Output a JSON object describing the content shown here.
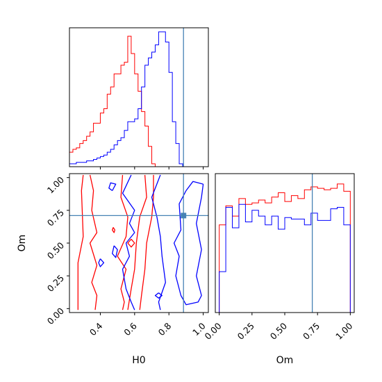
{
  "chart_data": {
    "type": "corner",
    "params": [
      "H0",
      "Om"
    ],
    "truth": {
      "H0": 0.885,
      "Om": 0.71
    },
    "colors": {
      "run_a": "#ff0000",
      "run_b": "#0000ff",
      "truth": "#4682b4"
    },
    "panels": [
      {
        "id": "h0-marginal",
        "type": "step-histogram",
        "xlim": [
          0.22,
          1.03
        ],
        "bin_width": 0.02,
        "series": [
          {
            "color": "red",
            "x_start": 0.22,
            "values": [
              0.1,
              0.12,
              0.13,
              0.16,
              0.18,
              0.21,
              0.24,
              0.3,
              0.3,
              0.37,
              0.4,
              0.5,
              0.55,
              0.64,
              0.64,
              0.7,
              0.72,
              0.9,
              0.78,
              0.64,
              0.52,
              0.38,
              0.28,
              0.14,
              0.02
            ]
          },
          {
            "color": "blue",
            "x_start": 0.22,
            "values": [
              0.02,
              0.02,
              0.03,
              0.03,
              0.03,
              0.04,
              0.04,
              0.05,
              0.06,
              0.07,
              0.08,
              0.1,
              0.12,
              0.15,
              0.18,
              0.2,
              0.25,
              0.31,
              0.31,
              0.33,
              0.4,
              0.55,
              0.7,
              0.75,
              0.79,
              0.84,
              0.93,
              0.93,
              0.86,
              0.65,
              0.31,
              0.16,
              0.02
            ]
          }
        ]
      },
      {
        "id": "om-marginal",
        "type": "step-histogram",
        "xlim": [
          -0.03,
          1.03
        ],
        "series": [
          {
            "color": "red",
            "bins": [
              0,
              0.05,
              0.1,
              0.15,
              0.2,
              0.25,
              0.3,
              0.35,
              0.4,
              0.45,
              0.5,
              0.55,
              0.6,
              0.65,
              0.7,
              0.75,
              0.8,
              0.85,
              0.9,
              0.95,
              1.0
            ],
            "values": [
              0.6,
              0.73,
              0.66,
              0.78,
              0.74,
              0.75,
              0.77,
              0.75,
              0.79,
              0.82,
              0.76,
              0.8,
              0.78,
              0.84,
              0.86,
              0.85,
              0.84,
              0.85,
              0.88,
              0.83
            ]
          },
          {
            "color": "blue",
            "bins": [
              0,
              0.05,
              0.1,
              0.15,
              0.2,
              0.25,
              0.3,
              0.35,
              0.4,
              0.45,
              0.5,
              0.55,
              0.6,
              0.65,
              0.7,
              0.75,
              0.8,
              0.85,
              0.9,
              0.95,
              1.0
            ],
            "values": [
              0.28,
              0.72,
              0.58,
              0.74,
              0.62,
              0.7,
              0.66,
              0.6,
              0.66,
              0.57,
              0.65,
              0.64,
              0.64,
              0.6,
              0.68,
              0.63,
              0.63,
              0.71,
              0.72,
              0.6
            ]
          }
        ]
      },
      {
        "id": "h0-om-2d",
        "type": "contour",
        "xlim": [
          0.22,
          1.03
        ],
        "ylim": [
          -0.03,
          1.03
        ],
        "contours": [
          {
            "color": "red",
            "points": [
              [
                0.27,
                -0.01
              ],
              [
                0.27,
                0.35
              ],
              [
                0.3,
                0.55
              ],
              [
                0.29,
                0.9
              ],
              [
                0.3,
                1.02
              ]
            ]
          },
          {
            "color": "red",
            "points": [
              [
                0.34,
                1.02
              ],
              [
                0.36,
                0.9
              ],
              [
                0.35,
                0.75
              ],
              [
                0.38,
                0.58
              ],
              [
                0.34,
                0.5
              ],
              [
                0.38,
                0.33
              ],
              [
                0.35,
                0.2
              ],
              [
                0.38,
                0.1
              ],
              [
                0.37,
                -0.01
              ]
            ]
          },
          {
            "color": "red",
            "points": [
              [
                0.53,
                1.02
              ],
              [
                0.52,
                0.85
              ],
              [
                0.56,
                0.7
              ],
              [
                0.55,
                0.55
              ],
              [
                0.5,
                0.4
              ],
              [
                0.55,
                0.3
              ],
              [
                0.52,
                0.15
              ],
              [
                0.54,
                0.05
              ],
              [
                0.53,
                -0.01
              ]
            ]
          },
          {
            "color": "red",
            "points": [
              [
                0.66,
                1.02
              ],
              [
                0.67,
                0.85
              ],
              [
                0.63,
                0.7
              ],
              [
                0.61,
                0.5
              ],
              [
                0.6,
                0.3
              ],
              [
                0.58,
                0.15
              ],
              [
                0.56,
                -0.01
              ]
            ]
          },
          {
            "color": "red",
            "points": [
              [
                0.71,
                1.02
              ],
              [
                0.71,
                0.85
              ],
              [
                0.7,
                0.7
              ],
              [
                0.67,
                0.5
              ],
              [
                0.66,
                0.3
              ],
              [
                0.64,
                0.1
              ],
              [
                0.63,
                -0.01
              ]
            ]
          },
          {
            "color": "red",
            "points": [
              [
                0.475,
                0.62
              ],
              [
                0.485,
                0.6
              ],
              [
                0.48,
                0.58
              ],
              [
                0.47,
                0.6
              ],
              [
                0.475,
                0.62
              ]
            ]
          },
          {
            "color": "red",
            "points": [
              [
                0.58,
                0.53
              ],
              [
                0.6,
                0.5
              ],
              [
                0.58,
                0.47
              ],
              [
                0.56,
                0.5
              ],
              [
                0.58,
                0.53
              ]
            ]
          },
          {
            "color": "blue",
            "points": [
              [
                0.58,
                1.02
              ],
              [
                0.53,
                0.88
              ],
              [
                0.6,
                0.75
              ],
              [
                0.57,
                0.65
              ],
              [
                0.6,
                0.58
              ],
              [
                0.55,
                0.5
              ],
              [
                0.57,
                0.4
              ],
              [
                0.53,
                0.3
              ],
              [
                0.55,
                0.15
              ],
              [
                0.58,
                0.05
              ],
              [
                0.6,
                -0.01
              ]
            ]
          },
          {
            "color": "blue",
            "points": [
              [
                0.75,
                1.02
              ],
              [
                0.7,
                0.85
              ],
              [
                0.73,
                0.7
              ],
              [
                0.75,
                0.55
              ],
              [
                0.76,
                0.4
              ],
              [
                0.78,
                0.2
              ],
              [
                0.74,
                0.05
              ],
              [
                0.75,
                -0.01
              ]
            ]
          },
          {
            "color": "blue",
            "points": [
              [
                1.0,
                0.95
              ],
              [
                0.94,
                0.97
              ],
              [
                0.9,
                0.9
              ],
              [
                0.86,
                0.8
              ],
              [
                0.87,
                0.6
              ],
              [
                0.83,
                0.5
              ],
              [
                0.86,
                0.4
              ],
              [
                0.84,
                0.25
              ],
              [
                0.87,
                0.1
              ],
              [
                0.9,
                0.03
              ],
              [
                0.97,
                0.05
              ],
              [
                0.99,
                0.1
              ],
              [
                0.96,
                0.25
              ],
              [
                0.99,
                0.45
              ],
              [
                0.96,
                0.65
              ],
              [
                0.99,
                0.85
              ],
              [
                1.0,
                0.95
              ]
            ]
          },
          {
            "color": "blue",
            "points": [
              [
                0.48,
                0.48
              ],
              [
                0.5,
                0.45
              ],
              [
                0.49,
                0.39
              ],
              [
                0.47,
                0.42
              ],
              [
                0.48,
                0.48
              ]
            ]
          },
          {
            "color": "blue",
            "points": [
              [
                0.47,
                0.9
              ],
              [
                0.49,
                0.95
              ],
              [
                0.46,
                0.96
              ],
              [
                0.45,
                0.92
              ],
              [
                0.47,
                0.9
              ]
            ]
          },
          {
            "color": "blue",
            "points": [
              [
                0.4,
                0.38
              ],
              [
                0.42,
                0.35
              ],
              [
                0.4,
                0.32
              ],
              [
                0.39,
                0.35
              ],
              [
                0.4,
                0.38
              ]
            ]
          },
          {
            "color": "blue",
            "points": [
              [
                0.74,
                0.12
              ],
              [
                0.76,
                0.1
              ],
              [
                0.74,
                0.08
              ],
              [
                0.72,
                0.1
              ],
              [
                0.74,
                0.12
              ]
            ]
          }
        ]
      }
    ],
    "axes": {
      "H0": {
        "label": "H0",
        "ticks": [
          0.4,
          0.6,
          0.8,
          1.0
        ],
        "tick_labels": [
          "0.4",
          "0.6",
          "0.8",
          "1.0"
        ]
      },
      "Om": {
        "label": "Om",
        "ticks": [
          0.0,
          0.25,
          0.5,
          0.75,
          1.0
        ],
        "tick_labels": [
          "0.00",
          "0.25",
          "0.50",
          "0.75",
          "1.00"
        ]
      }
    }
  }
}
